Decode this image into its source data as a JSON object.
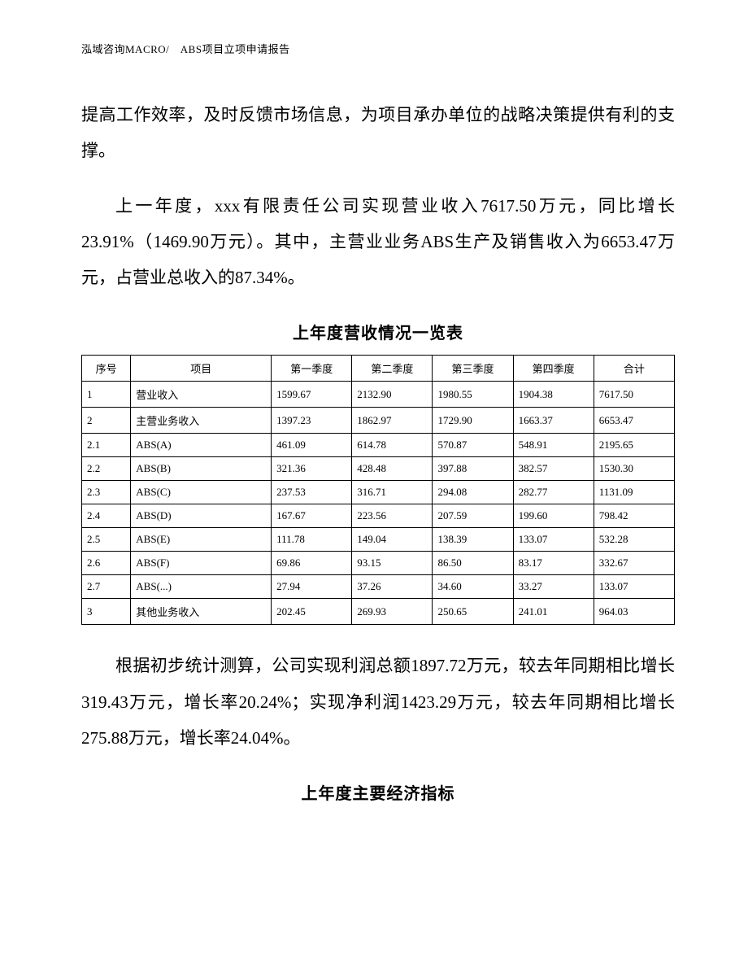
{
  "header": "泓域咨询MACRO/　ABS项目立项申请报告",
  "para1": "提高工作效率，及时反馈市场信息，为项目承办单位的战略决策提供有利的支撑。",
  "para2": "上一年度，xxx有限责任公司实现营业收入7617.50万元，同比增长23.91%（1469.90万元）。其中，主营业业务ABS生产及销售收入为6653.47万元，占营业总收入的87.34%。",
  "table1": {
    "title": "上年度营收情况一览表",
    "columns": [
      "序号",
      "项目",
      "第一季度",
      "第二季度",
      "第三季度",
      "第四季度",
      "合计"
    ],
    "rows": [
      [
        "1",
        "营业收入",
        "1599.67",
        "2132.90",
        "1980.55",
        "1904.38",
        "7617.50"
      ],
      [
        "2",
        "主营业务收入",
        "1397.23",
        "1862.97",
        "1729.90",
        "1663.37",
        "6653.47"
      ],
      [
        "2.1",
        "ABS(A)",
        "461.09",
        "614.78",
        "570.87",
        "548.91",
        "2195.65"
      ],
      [
        "2.2",
        "ABS(B)",
        "321.36",
        "428.48",
        "397.88",
        "382.57",
        "1530.30"
      ],
      [
        "2.3",
        "ABS(C)",
        "237.53",
        "316.71",
        "294.08",
        "282.77",
        "1131.09"
      ],
      [
        "2.4",
        "ABS(D)",
        "167.67",
        "223.56",
        "207.59",
        "199.60",
        "798.42"
      ],
      [
        "2.5",
        "ABS(E)",
        "111.78",
        "149.04",
        "138.39",
        "133.07",
        "532.28"
      ],
      [
        "2.6",
        "ABS(F)",
        "69.86",
        "93.15",
        "86.50",
        "83.17",
        "332.67"
      ],
      [
        "2.7",
        "ABS(...)",
        "27.94",
        "37.26",
        "34.60",
        "33.27",
        "133.07"
      ],
      [
        "3",
        "其他业务收入",
        "202.45",
        "269.93",
        "250.65",
        "241.01",
        "964.03"
      ]
    ]
  },
  "para3": "根据初步统计测算，公司实现利润总额1897.72万元，较去年同期相比增长319.43万元，增长率20.24%；实现净利润1423.29万元，较去年同期相比增长275.88万元，增长率24.04%。",
  "table2_title": "上年度主要经济指标"
}
